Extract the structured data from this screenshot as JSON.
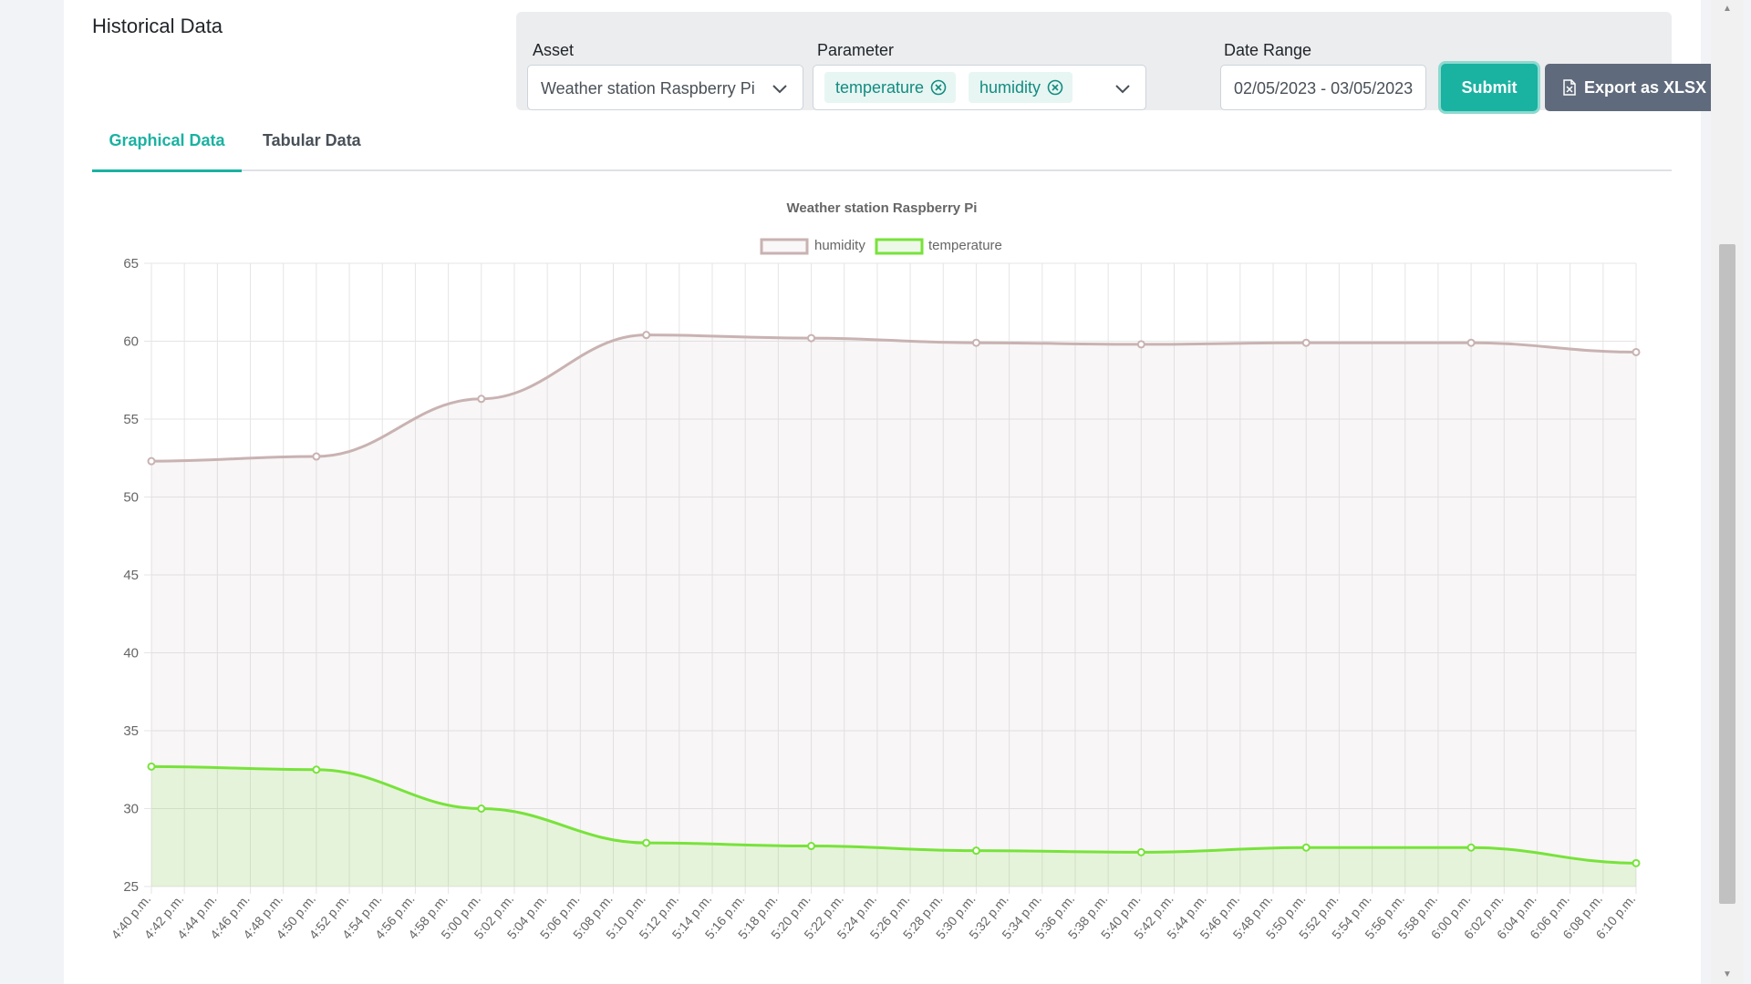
{
  "page": {
    "title": "Historical Data"
  },
  "filters": {
    "asset_label": "Asset",
    "asset_value": "Weather station Raspberry Pi",
    "parameter_label": "Parameter",
    "parameter_tags": [
      "temperature",
      "humidity"
    ],
    "date_label": "Date Range",
    "date_value": "02/05/2023 - 03/05/2023",
    "submit_label": "Submit",
    "export_label": "Export as XLSX"
  },
  "tabs": [
    {
      "label": "Graphical Data",
      "active": true
    },
    {
      "label": "Tabular Data",
      "active": false
    }
  ],
  "colors": {
    "accent": "#1ab2a1",
    "humidity": "#c9b2b2",
    "temperature": "#77e33a",
    "export_button": "#5f6a7c"
  },
  "icons": {
    "dropdown": "chevron-down-icon",
    "tag_remove": "close-circle-icon",
    "export": "file-excel-icon"
  },
  "chart_data": {
    "type": "area",
    "title": "Weather station Raspberry Pi",
    "xlabel": "",
    "ylabel": "",
    "ylim": [
      25,
      65
    ],
    "y_ticks": [
      25,
      30,
      35,
      40,
      45,
      50,
      55,
      60,
      65
    ],
    "grid": true,
    "legend": "top-center",
    "x_tick_labels": [
      "4:40 p.m.",
      "4:42 p.m.",
      "4:44 p.m.",
      "4:46 p.m.",
      "4:48 p.m.",
      "4:50 p.m.",
      "4:52 p.m.",
      "4:54 p.m.",
      "4:56 p.m.",
      "4:58 p.m.",
      "5:00 p.m.",
      "5:02 p.m.",
      "5:04 p.m.",
      "5:06 p.m.",
      "5:08 p.m.",
      "5:10 p.m.",
      "5:12 p.m.",
      "5:14 p.m.",
      "5:16 p.m.",
      "5:18 p.m.",
      "5:20 p.m.",
      "5:22 p.m.",
      "5:24 p.m.",
      "5:26 p.m.",
      "5:28 p.m.",
      "5:30 p.m.",
      "5:32 p.m.",
      "5:34 p.m.",
      "5:36 p.m.",
      "5:38 p.m.",
      "5:40 p.m.",
      "5:42 p.m.",
      "5:44 p.m.",
      "5:46 p.m.",
      "5:48 p.m.",
      "5:50 p.m.",
      "5:52 p.m.",
      "5:54 p.m.",
      "5:56 p.m.",
      "5:58 p.m.",
      "6:00 p.m.",
      "6:02 p.m.",
      "6:04 p.m.",
      "6:06 p.m.",
      "6:08 p.m.",
      "6:10 p.m."
    ],
    "x": [
      "4:40 p.m.",
      "4:50 p.m.",
      "5:00 p.m.",
      "5:10 p.m.",
      "5:20 p.m.",
      "5:30 p.m.",
      "5:40 p.m.",
      "5:50 p.m.",
      "6:00 p.m.",
      "6:10 p.m."
    ],
    "series": [
      {
        "name": "humidity",
        "values": [
          52.3,
          52.6,
          56.3,
          60.4,
          60.2,
          59.9,
          59.8,
          59.9,
          59.9,
          59.3
        ]
      },
      {
        "name": "temperature",
        "values": [
          32.7,
          32.5,
          30.0,
          27.8,
          27.6,
          27.3,
          27.2,
          27.5,
          27.5,
          26.5
        ]
      }
    ]
  }
}
